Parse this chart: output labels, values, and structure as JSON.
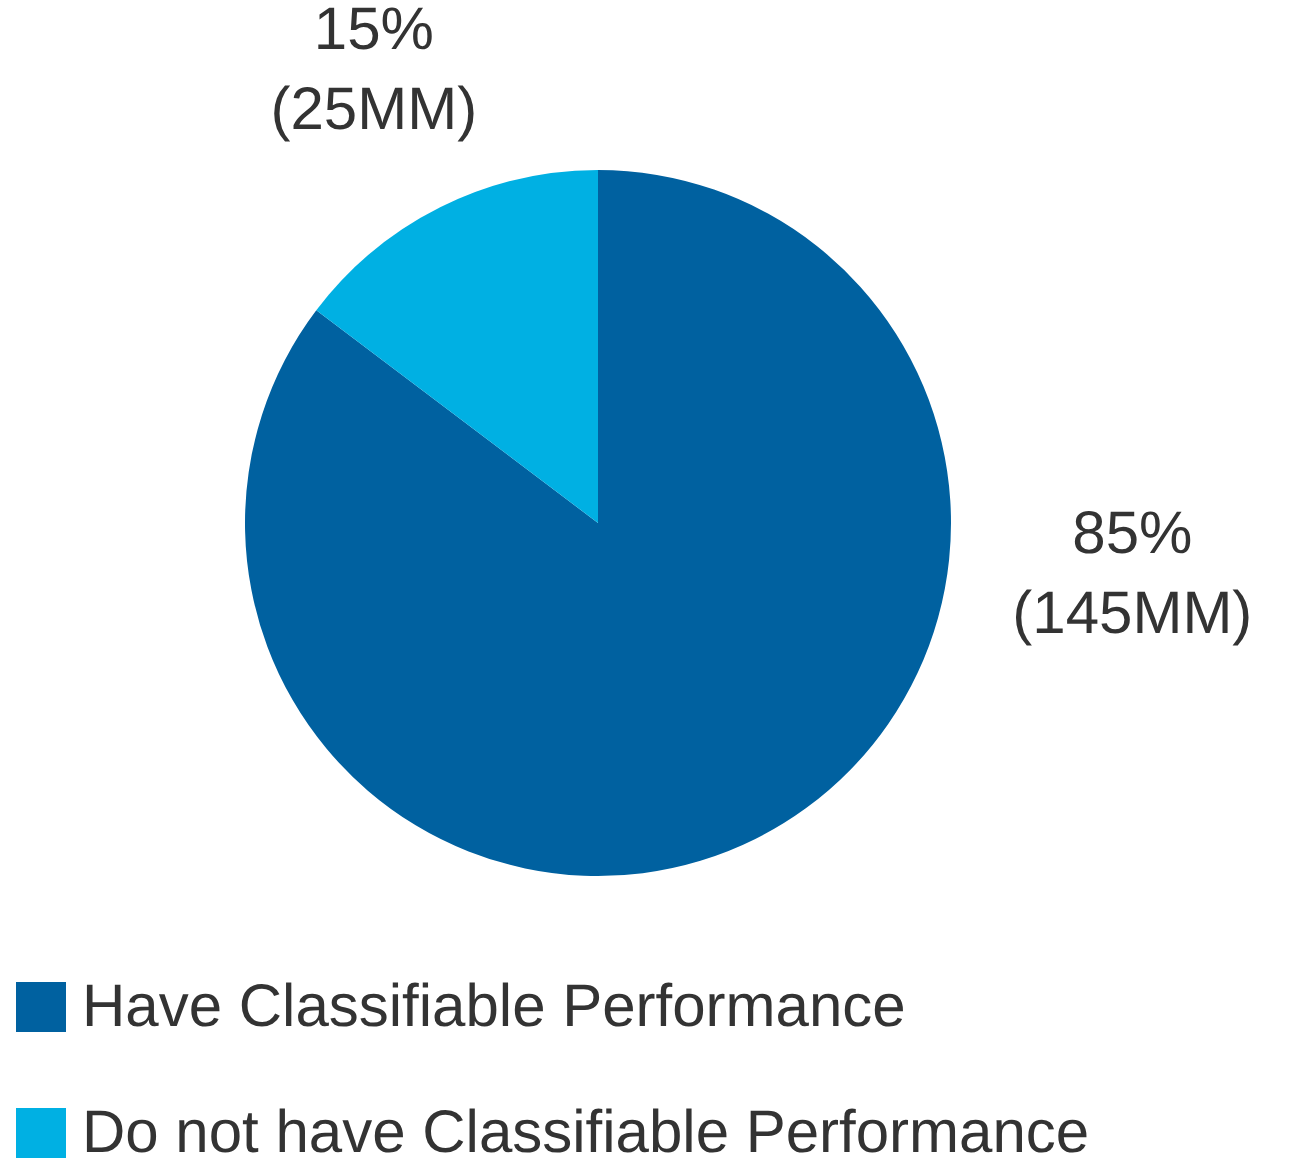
{
  "chart_data": {
    "type": "pie",
    "categories": [
      "Have Classifiable Performance",
      "Do not have Classifiable Performance"
    ],
    "values": [
      145,
      25
    ],
    "colors": [
      "#0061a0",
      "#00b0e3"
    ],
    "value_labels": [
      "85%\n(145MM)",
      "15%\n(25MM)"
    ],
    "legend": "bottom"
  }
}
